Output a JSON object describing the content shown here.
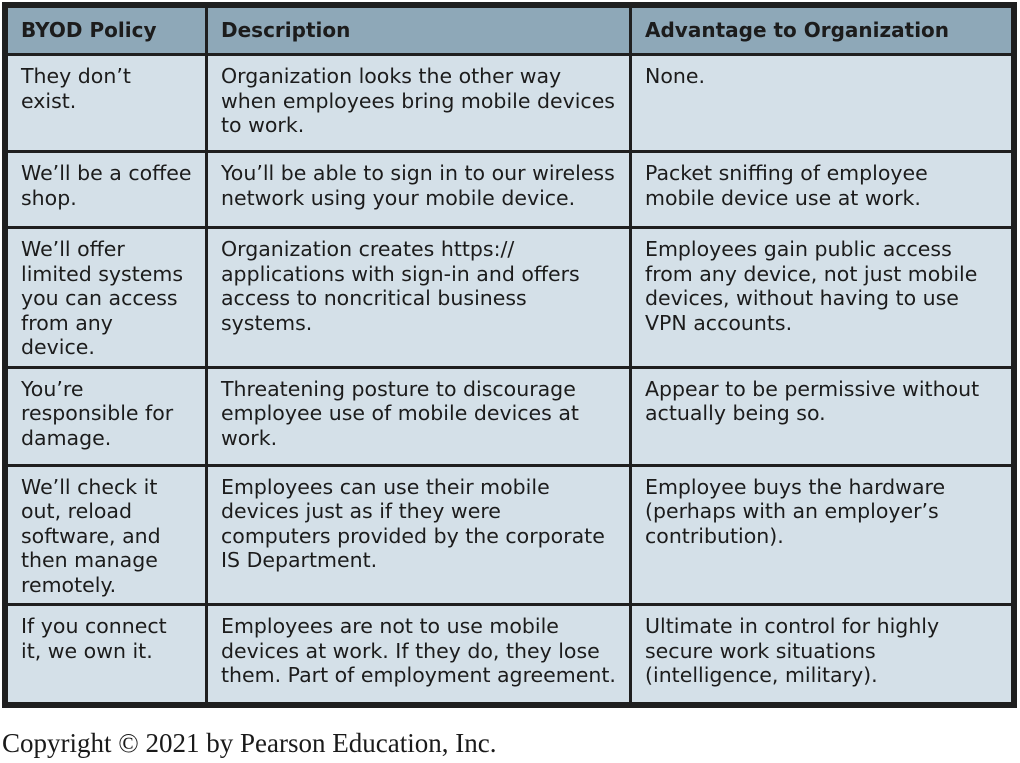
{
  "table": {
    "headers": [
      "BYOD Policy",
      "Description",
      "Advantage to Organization"
    ],
    "rows": [
      {
        "policy": "They don’t exist.",
        "description": "Organization looks the other way when employees bring mobile devices to work.",
        "advantage": "None."
      },
      {
        "policy": "We’ll be a coffee shop.",
        "description": "You’ll be able to sign in to our wireless network using your mobile device.",
        "advantage": "Packet sniffing of employee mobile device use at work."
      },
      {
        "policy": "We’ll offer limited systems you can access from any device.",
        "description": "Organization creates https:// applications with sign-in and offers access to noncritical business systems.",
        "advantage": "Employees gain public access from any device, not just mobile devices, without having to use VPN accounts."
      },
      {
        "policy": "You’re responsible for damage.",
        "description": "Threatening posture to discourage employee use of mobile devices at work.",
        "advantage": "Appear to be permissive without actually being so."
      },
      {
        "policy": "We’ll check it out, reload software, and then manage remotely.",
        "description": "Employees can use their mobile devices just as if they were computers provided by the corporate IS Department.",
        "advantage": "Employee buys the hardware (perhaps with an employer’s contribution)."
      },
      {
        "policy": "If you connect it, we own it.",
        "description": "Employees are not to use mobile devices at work. If they do, they lose them. Part of employment agreement.",
        "advantage": "Ultimate in control for highly secure work situations (intelligence, military)."
      }
    ]
  },
  "copyright": "Copyright © 2021 by Pearson Education, Inc.",
  "colors": {
    "header_bg": "#8ea8b8",
    "cell_bg": "#d4e0e8",
    "border": "#1f1f1f"
  }
}
